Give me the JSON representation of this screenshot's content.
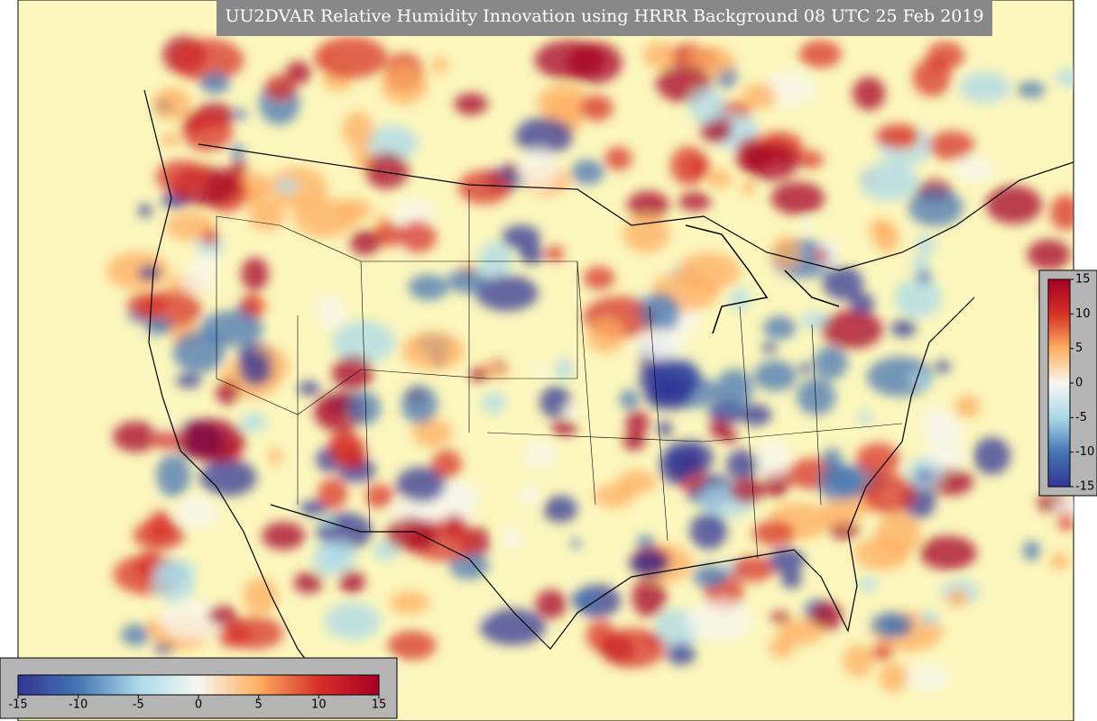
{
  "title": "UU2DVAR Relative Humidity Innovation using HRRR Background 08 UTC 25 Feb 2019",
  "colormap": {
    "colors": [
      "#313695",
      "#4575b4",
      "#abd9e9",
      "#f7f7f0",
      "#fdae61",
      "#d73027",
      "#a50026"
    ]
  },
  "horizontal_colorbar": {
    "ticks": [
      -15,
      -10,
      -5,
      0,
      5,
      10,
      15
    ]
  },
  "vertical_colorbar": {
    "ticks": [
      -15,
      -10,
      -5,
      0,
      5,
      10,
      15
    ]
  }
}
